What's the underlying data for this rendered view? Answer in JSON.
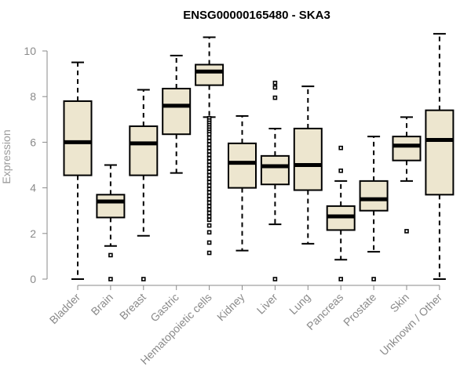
{
  "chart_data": {
    "type": "boxplot",
    "title": "ENSG00000165480 - SKA3",
    "xlabel": "",
    "ylabel": "Expression",
    "ylim": [
      0,
      10.8
    ],
    "yticks": [
      0,
      2,
      4,
      6,
      8,
      10
    ],
    "box_color": "#ede6cf",
    "categories": [
      "Bladder",
      "Brain",
      "Breast",
      "Gastric",
      "Hematopoietic cells",
      "Kidney",
      "Liver",
      "Lung",
      "Pancreas",
      "Prostate",
      "Skin",
      "Unknown / Other"
    ],
    "boxes": [
      {
        "label": "Bladder",
        "min": 0.0,
        "q1": 4.55,
        "median": 6.0,
        "q3": 7.8,
        "max": 9.5,
        "outliers": []
      },
      {
        "label": "Brain",
        "min": 1.45,
        "q1": 2.7,
        "median": 3.4,
        "q3": 3.7,
        "max": 5.0,
        "outliers": [
          1.05,
          0.0
        ]
      },
      {
        "label": "Breast",
        "min": 1.9,
        "q1": 4.55,
        "median": 5.95,
        "q3": 6.7,
        "max": 8.3,
        "outliers": [
          0.0
        ]
      },
      {
        "label": "Gastric",
        "min": 4.65,
        "q1": 6.35,
        "median": 7.6,
        "q3": 8.35,
        "max": 9.8,
        "outliers": []
      },
      {
        "label": "Hematopoietic cells",
        "min": 7.1,
        "q1": 8.5,
        "median": 9.1,
        "q3": 9.4,
        "max": 10.6,
        "outliers": [
          7.05,
          6.95,
          6.85,
          6.75,
          6.65,
          6.55,
          6.45,
          6.35,
          6.2,
          6.05,
          5.9,
          5.75,
          5.6,
          5.45,
          5.3,
          5.15,
          5.0,
          4.85,
          4.7,
          4.55,
          4.4,
          4.25,
          4.1,
          3.95,
          3.8,
          3.65,
          3.5,
          3.35,
          3.2,
          3.05,
          2.9,
          2.75,
          2.6,
          2.35,
          2.05,
          1.6,
          1.15
        ]
      },
      {
        "label": "Kidney",
        "min": 1.25,
        "q1": 4.0,
        "median": 5.1,
        "q3": 5.95,
        "max": 7.15,
        "outliers": []
      },
      {
        "label": "Liver",
        "min": 2.4,
        "q1": 4.15,
        "median": 4.95,
        "q3": 5.4,
        "max": 6.6,
        "outliers": [
          8.6,
          8.4,
          7.95,
          0.0
        ]
      },
      {
        "label": "Lung",
        "min": 1.55,
        "q1": 3.9,
        "median": 5.0,
        "q3": 6.6,
        "max": 8.45,
        "outliers": []
      },
      {
        "label": "Pancreas",
        "min": 0.85,
        "q1": 2.15,
        "median": 2.75,
        "q3": 3.2,
        "max": 4.3,
        "outliers": [
          5.75,
          4.75,
          0.0
        ]
      },
      {
        "label": "Prostate",
        "min": 1.2,
        "q1": 3.0,
        "median": 3.5,
        "q3": 4.3,
        "max": 6.25,
        "outliers": [
          0.0
        ]
      },
      {
        "label": "Skin",
        "min": 4.3,
        "q1": 5.2,
        "median": 5.85,
        "q3": 6.25,
        "max": 7.1,
        "outliers": [
          2.1
        ]
      },
      {
        "label": "Unknown / Other",
        "min": 0.0,
        "q1": 3.7,
        "median": 6.1,
        "q3": 7.4,
        "max": 10.75,
        "outliers": []
      }
    ]
  }
}
